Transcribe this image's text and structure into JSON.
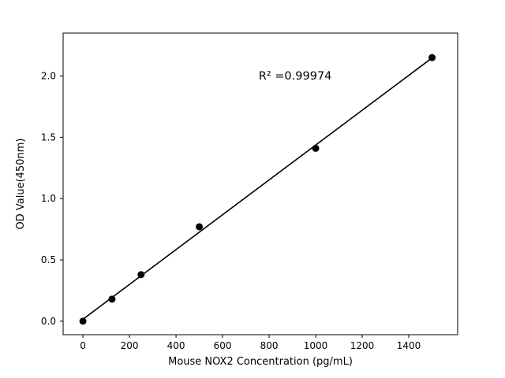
{
  "chart_data": {
    "type": "scatter",
    "x": [
      0,
      125,
      250,
      500,
      1000,
      1500
    ],
    "y": [
      0.0,
      0.18,
      0.38,
      0.77,
      1.41,
      2.15
    ],
    "fit_line": true,
    "title": "",
    "xlabel": "Mouse NOX2 Concentration (pg/mL)",
    "ylabel": "OD Value(450nm)",
    "annotation": {
      "text": "R² =0.99974",
      "x": 755,
      "y": 1.97
    },
    "xticks": [
      0,
      200,
      400,
      600,
      800,
      1000,
      1200,
      1400
    ],
    "xtick_labels": [
      "0",
      "200",
      "400",
      "600",
      "800",
      "1000",
      "1200",
      "1400"
    ],
    "yticks": [
      0.0,
      0.5,
      1.0,
      1.5,
      2.0
    ],
    "ytick_labels": [
      "0.0",
      "0.5",
      "1.0",
      "1.5",
      "2.0"
    ],
    "xlim": [
      -85,
      1610
    ],
    "ylim": [
      -0.11,
      2.35
    ],
    "grid": false,
    "legend": "none",
    "marker_color": "#000000",
    "line_color": "#000000",
    "axis_color": "#000000",
    "background": "#ffffff"
  }
}
